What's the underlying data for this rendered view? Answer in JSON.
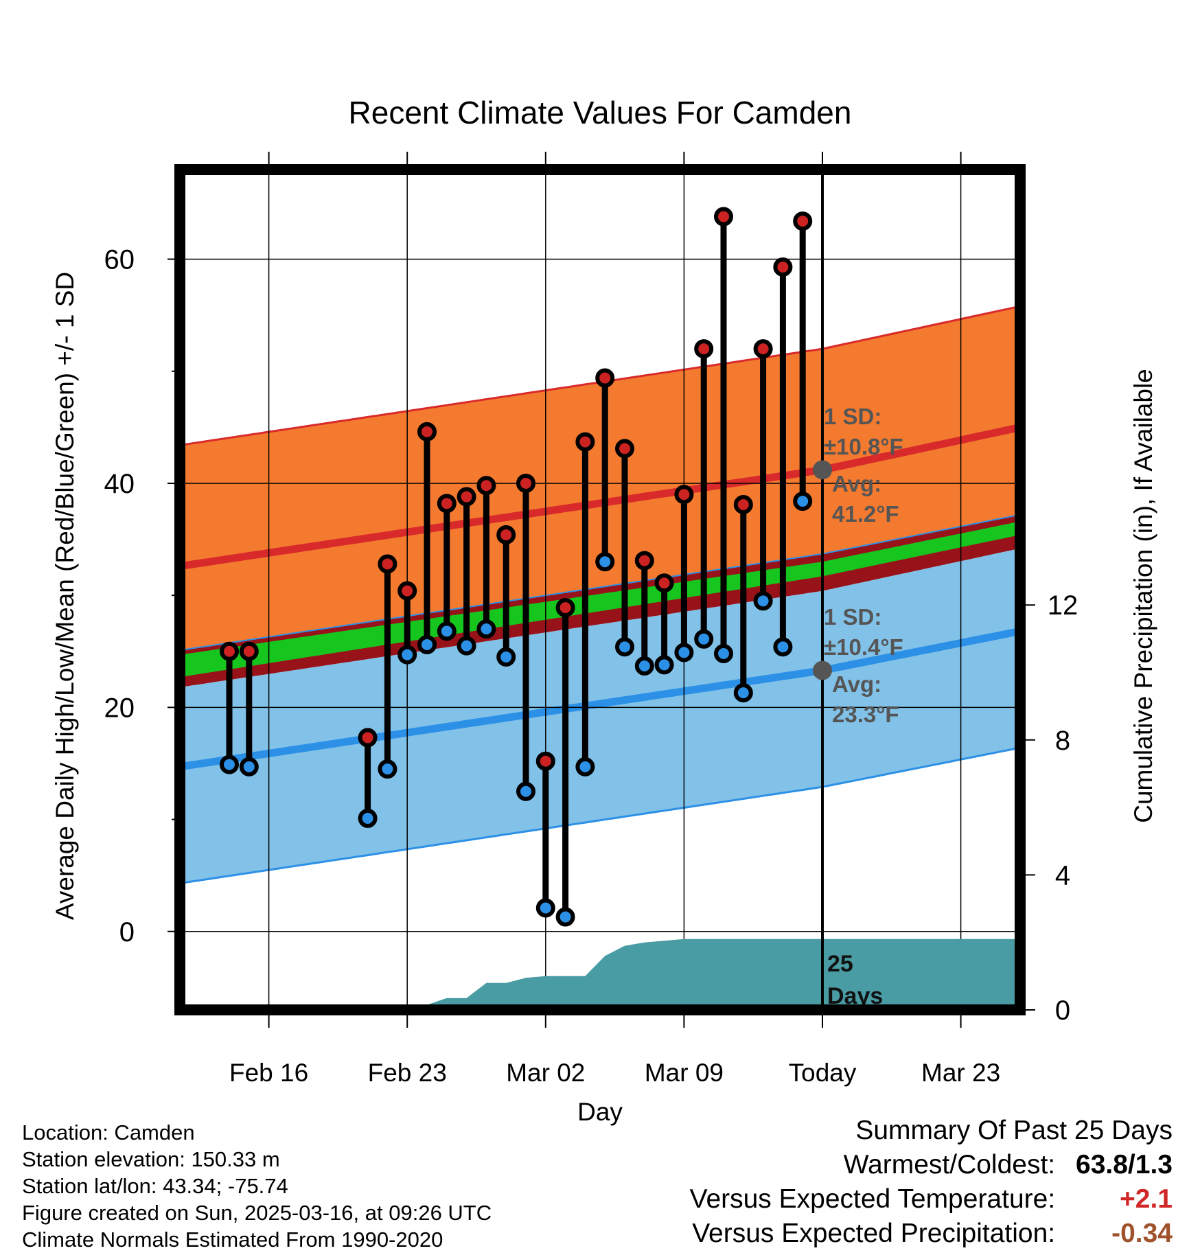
{
  "chart_data": {
    "type": "line",
    "title": "Recent Climate Values For Camden",
    "xlabel": "Day",
    "ylabel": "Average Daily High/Low/Mean (Red/Blue/Green) +/- 1 SD",
    "y2label": "Cumulative Precipitation (in), If Available",
    "x_day_range": [
      -32.5,
      10
    ],
    "ylim": [
      -7,
      68
    ],
    "y2lim": [
      0,
      20
    ],
    "grid": true,
    "x_ticks": [
      {
        "day": -28,
        "label": "Feb 16"
      },
      {
        "day": -21,
        "label": "Feb 23"
      },
      {
        "day": -14,
        "label": "Mar 02"
      },
      {
        "day": -7,
        "label": "Mar 09"
      },
      {
        "day": 0,
        "label": "Today"
      },
      {
        "day": 7,
        "label": "Mar 23"
      }
    ],
    "y_ticks": [
      0,
      20,
      40,
      60
    ],
    "y_minor_ticks": [
      10,
      30,
      50
    ],
    "y2_ticks": [
      0,
      4,
      8,
      12
    ],
    "normals": {
      "day": [
        -32.5,
        0,
        10
      ],
      "high_mean": [
        32.6,
        41.2,
        45.0
      ],
      "high_sd": 10.8,
      "low_mean": [
        14.7,
        23.3,
        26.8
      ],
      "low_sd": 10.4,
      "mean_lower": [
        22.7,
        31.7,
        35.4
      ],
      "mean_upper": [
        24.7,
        33.0,
        36.6
      ]
    },
    "annotations": {
      "high_sd": "1 SD:",
      "high_sd_value": "±10.8°F",
      "high_avg": "Avg:",
      "high_avg_value": "41.2°F",
      "low_sd": "1 SD:",
      "low_sd_value": "±10.4°F",
      "low_avg": "Avg:",
      "low_avg_value": "23.3°F",
      "days_count": "25",
      "days_word": "Days"
    },
    "series": [
      {
        "name": "High",
        "color": "#cc2222",
        "values": [
          {
            "day": -30,
            "v": 25.0
          },
          {
            "day": -29,
            "v": 25.0
          },
          {
            "day": -23,
            "v": 17.3
          },
          {
            "day": -22,
            "v": 32.8
          },
          {
            "day": -21,
            "v": 30.4
          },
          {
            "day": -20,
            "v": 44.6
          },
          {
            "day": -19,
            "v": 38.2
          },
          {
            "day": -18,
            "v": 38.8
          },
          {
            "day": -17,
            "v": 39.8
          },
          {
            "day": -16,
            "v": 35.4
          },
          {
            "day": -15,
            "v": 40.0
          },
          {
            "day": -14,
            "v": 15.2
          },
          {
            "day": -13,
            "v": 28.9
          },
          {
            "day": -12,
            "v": 43.7
          },
          {
            "day": -11,
            "v": 49.4
          },
          {
            "day": -10,
            "v": 43.1
          },
          {
            "day": -9,
            "v": 33.1
          },
          {
            "day": -8,
            "v": 31.1
          },
          {
            "day": -7,
            "v": 39.0
          },
          {
            "day": -6,
            "v": 52.0
          },
          {
            "day": -5,
            "v": 63.8
          },
          {
            "day": -4,
            "v": 38.1
          },
          {
            "day": -3,
            "v": 52.0
          },
          {
            "day": -2,
            "v": 59.3
          },
          {
            "day": -1,
            "v": 63.4
          }
        ]
      },
      {
        "name": "Low",
        "color": "#2b90e6",
        "values": [
          {
            "day": -30,
            "v": 14.9
          },
          {
            "day": -29,
            "v": 14.7
          },
          {
            "day": -23,
            "v": 10.1
          },
          {
            "day": -22,
            "v": 14.5
          },
          {
            "day": -21,
            "v": 24.7
          },
          {
            "day": -20,
            "v": 25.6
          },
          {
            "day": -19,
            "v": 26.8
          },
          {
            "day": -18,
            "v": 25.5
          },
          {
            "day": -17,
            "v": 27.0
          },
          {
            "day": -16,
            "v": 24.5
          },
          {
            "day": -15,
            "v": 12.5
          },
          {
            "day": -14,
            "v": 2.1
          },
          {
            "day": -13,
            "v": 1.3
          },
          {
            "day": -12,
            "v": 14.7
          },
          {
            "day": -11,
            "v": 33.0
          },
          {
            "day": -10,
            "v": 25.4
          },
          {
            "day": -9,
            "v": 23.7
          },
          {
            "day": -8,
            "v": 23.8
          },
          {
            "day": -7,
            "v": 24.9
          },
          {
            "day": -6,
            "v": 26.1
          },
          {
            "day": -5,
            "v": 24.8
          },
          {
            "day": -4,
            "v": 21.3
          },
          {
            "day": -3,
            "v": 29.5
          },
          {
            "day": -2,
            "v": 25.4
          },
          {
            "day": -1,
            "v": 38.4
          }
        ]
      }
    ],
    "precip_cumulative": {
      "day": [
        -32.5,
        -28,
        -23,
        -22,
        -21,
        -20,
        -19,
        -18,
        -17,
        -16,
        -15,
        -14,
        -13,
        -12,
        -11,
        -10,
        -9,
        -8,
        -7,
        -6,
        -5,
        -4,
        -3,
        -2,
        -1,
        0,
        10
      ],
      "values": [
        0.0,
        0.05,
        0.1,
        0.1,
        0.15,
        0.15,
        0.35,
        0.35,
        0.8,
        0.8,
        0.95,
        1.0,
        1.0,
        1.0,
        1.6,
        1.9,
        2.0,
        2.05,
        2.1,
        2.1,
        2.1,
        2.1,
        2.1,
        2.1,
        2.1,
        2.1,
        2.1
      ]
    },
    "colors": {
      "high_band": "#f47a30",
      "high_line": "#d82a2a",
      "low_band": "#82c2e8",
      "low_line": "#2b90e6",
      "mean_band": "#16c61e",
      "overlap_band": "#98121a",
      "precip_fill": "#4a9ca4",
      "marker_grey": "#555555",
      "annotation_text": "#555555"
    }
  },
  "info": {
    "location": "Location: Camden",
    "elevation": "Station elevation: 150.33 m",
    "latlon": "Station lat/lon: 43.34; -75.74",
    "created": "Figure created on Sun, 2025-03-16, at 09:26 UTC",
    "normals": "Climate Normals Estimated From 1990-2020"
  },
  "summary": {
    "title": "Summary Of Past 25 Days",
    "warmest_label": "Warmest/Coldest:",
    "warmest_value": "63.8/1.3",
    "temp_label": "Versus Expected Temperature:",
    "temp_value": "+2.1",
    "precip_label": "Versus Expected Precipitation:",
    "precip_value": "-0.34"
  }
}
